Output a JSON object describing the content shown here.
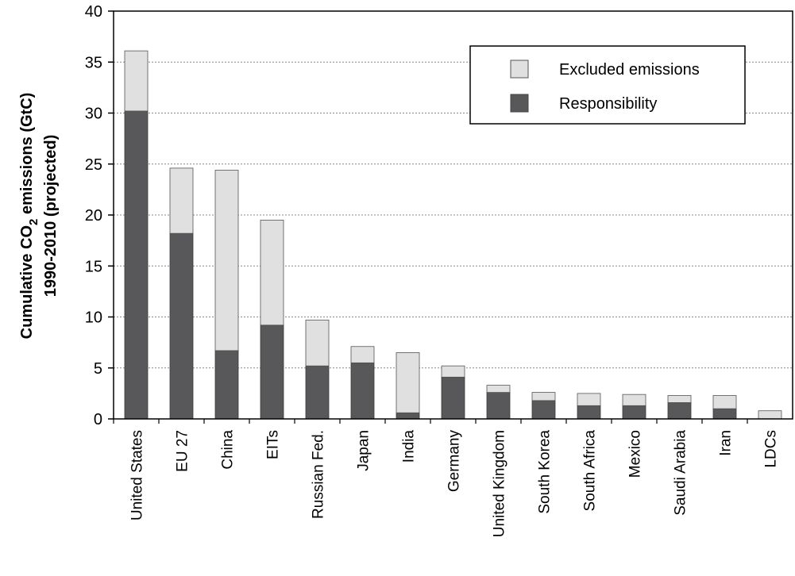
{
  "chart_data": {
    "type": "bar",
    "stacked": true,
    "ylabel_lines": [
      "Cumulative CO",
      "2",
      " emissions (GtC)",
      "1990-2010 (projected)"
    ],
    "ylim": [
      0,
      40
    ],
    "yticks": [
      "0",
      "5",
      "10",
      "15",
      "20",
      "25",
      "30",
      "35",
      "40"
    ],
    "ytick_values": [
      0,
      5,
      10,
      15,
      20,
      25,
      30,
      35,
      40
    ],
    "grid": "horizontal dotted",
    "legend_position": "top-right",
    "categories": [
      "United States",
      "EU 27",
      "China",
      "EITs",
      "Russian Fed.",
      "Japan",
      "India",
      "Germany",
      "United Kingdom",
      "South Korea",
      "South Africa",
      "Mexico",
      "Saudi Arabia",
      "Iran",
      "LDCs"
    ],
    "series": [
      {
        "name": "Responsibility",
        "color": "#58585a",
        "values": [
          30.2,
          18.2,
          6.7,
          9.2,
          5.2,
          5.5,
          0.6,
          4.1,
          2.6,
          1.8,
          1.3,
          1.3,
          1.6,
          1.0,
          0.0
        ]
      },
      {
        "name": "Excluded emissions",
        "color": "#e0e0e0",
        "values": [
          5.9,
          6.4,
          17.7,
          10.3,
          4.5,
          1.6,
          5.9,
          1.1,
          0.7,
          0.8,
          1.2,
          1.1,
          0.7,
          1.3,
          0.8
        ]
      }
    ]
  }
}
